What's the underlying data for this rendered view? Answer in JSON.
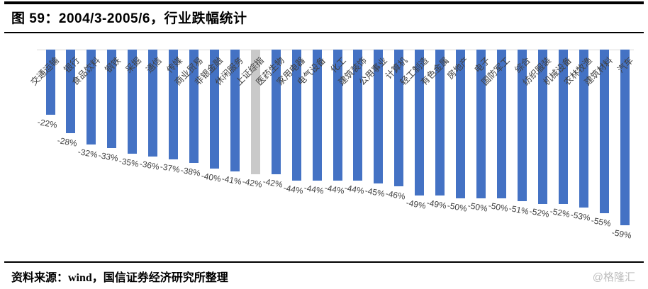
{
  "header": {
    "figure_label": "图 59",
    "title": "图 59：2004/3-2005/6，行业跌幅统计"
  },
  "chart_data": {
    "type": "bar",
    "title": "2004/3-2005/6，行业跌幅统计",
    "orientation": "vertical",
    "unit": "%",
    "grid": "off",
    "legend": "none",
    "ylim": [
      -60,
      0
    ],
    "baseline_value": 0,
    "categories": [
      "交通运输",
      "银行",
      "食品饮料",
      "钢铁",
      "采掘",
      "通信",
      "传媒",
      "商业贸易",
      "非银金融",
      "休闲服务",
      "上证综指",
      "医药生物",
      "家用电器",
      "电气设备",
      "化工",
      "建筑装饰",
      "公用事业",
      "计算机",
      "轻工制造",
      "有色金属",
      "房地产",
      "电子",
      "国防军工",
      "综合",
      "纺织服装",
      "机械设备",
      "农林牧渔",
      "建筑材料",
      "汽车"
    ],
    "values": [
      -22,
      -28,
      -32,
      -33,
      -35,
      -36,
      -37,
      -38,
      -40,
      -41,
      -42,
      -42,
      -44,
      -44,
      -44,
      -44,
      -45,
      -46,
      -49,
      -49,
      -50,
      -50,
      -50,
      -51,
      -52,
      -52,
      -53,
      -55,
      -59
    ],
    "value_labels": [
      "-22%",
      "-28%",
      "-32%",
      "-33%",
      "-35%",
      "-36%",
      "-37%",
      "-38%",
      "-40%",
      "-41%",
      "-42%",
      "-42%",
      "-44%",
      "-44%",
      "-44%",
      "-44%",
      "-45%",
      "-46%",
      "-49%",
      "-49%",
      "-50%",
      "-50%",
      "-50%",
      "-51%",
      "-52%",
      "-52%",
      "-53%",
      "-55%",
      "-59%"
    ],
    "highlight_category": "上证综指",
    "highlight_index": 10,
    "colors": {
      "bar": "#4472C4",
      "highlight_bar": "#C9C9C9",
      "baseline": "#D9D9D9",
      "label_text": "#404040"
    }
  },
  "footer": {
    "source": "资料来源：wind，国信证券经济研究所整理",
    "watermark": "@格隆汇"
  }
}
